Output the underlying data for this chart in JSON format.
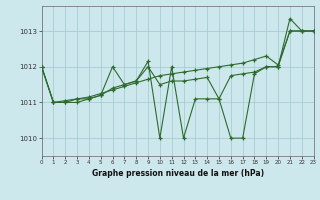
{
  "title": "Graphe pression niveau de la mer (hPa)",
  "bg_color": "#cde8ed",
  "grid_color": "#a0c8cc",
  "line_color": "#2d6b2d",
  "x_min": 0,
  "x_max": 23,
  "y_min": 1009.5,
  "y_max": 1013.7,
  "y_ticks": [
    1010,
    1011,
    1012,
    1013
  ],
  "x_ticks": [
    0,
    1,
    2,
    3,
    4,
    5,
    6,
    7,
    8,
    9,
    10,
    11,
    12,
    13,
    14,
    15,
    16,
    17,
    18,
    19,
    20,
    21,
    22,
    23
  ],
  "series_smooth": [
    [
      0,
      1012.0
    ],
    [
      1,
      1011.0
    ],
    [
      2,
      1011.05
    ],
    [
      3,
      1011.1
    ],
    [
      4,
      1011.15
    ],
    [
      5,
      1011.25
    ],
    [
      6,
      1011.35
    ],
    [
      7,
      1011.45
    ],
    [
      8,
      1011.55
    ],
    [
      9,
      1011.65
    ],
    [
      10,
      1011.75
    ],
    [
      11,
      1011.8
    ],
    [
      12,
      1011.85
    ],
    [
      13,
      1011.9
    ],
    [
      14,
      1011.95
    ],
    [
      15,
      1012.0
    ],
    [
      16,
      1012.05
    ],
    [
      17,
      1012.1
    ],
    [
      18,
      1012.2
    ],
    [
      19,
      1012.3
    ],
    [
      20,
      1012.05
    ],
    [
      21,
      1013.0
    ],
    [
      22,
      1013.0
    ],
    [
      23,
      1013.0
    ]
  ],
  "series_jagged1": [
    [
      0,
      1012.0
    ],
    [
      1,
      1011.0
    ],
    [
      2,
      1011.0
    ],
    [
      3,
      1011.0
    ],
    [
      4,
      1011.1
    ],
    [
      5,
      1011.2
    ],
    [
      6,
      1012.0
    ],
    [
      7,
      1011.5
    ],
    [
      8,
      1011.6
    ],
    [
      9,
      1012.15
    ],
    [
      10,
      1010.0
    ],
    [
      11,
      1012.0
    ],
    [
      12,
      1010.0
    ],
    [
      13,
      1011.1
    ],
    [
      14,
      1011.1
    ],
    [
      15,
      1011.1
    ],
    [
      16,
      1010.0
    ],
    [
      17,
      1010.0
    ],
    [
      18,
      1011.8
    ],
    [
      19,
      1012.0
    ],
    [
      20,
      1012.0
    ],
    [
      21,
      1013.35
    ],
    [
      22,
      1013.0
    ],
    [
      23,
      1013.0
    ]
  ],
  "series_jagged2": [
    [
      0,
      1012.0
    ],
    [
      1,
      1011.0
    ],
    [
      2,
      1011.0
    ],
    [
      3,
      1011.1
    ],
    [
      4,
      1011.1
    ],
    [
      5,
      1011.2
    ],
    [
      6,
      1011.4
    ],
    [
      7,
      1011.5
    ],
    [
      8,
      1011.6
    ],
    [
      9,
      1012.0
    ],
    [
      10,
      1011.5
    ],
    [
      11,
      1011.6
    ],
    [
      12,
      1011.6
    ],
    [
      13,
      1011.65
    ],
    [
      14,
      1011.7
    ],
    [
      15,
      1011.1
    ],
    [
      16,
      1011.75
    ],
    [
      17,
      1011.8
    ],
    [
      18,
      1011.85
    ],
    [
      19,
      1012.0
    ],
    [
      20,
      1012.0
    ],
    [
      21,
      1013.0
    ],
    [
      22,
      1013.0
    ],
    [
      23,
      1013.0
    ]
  ]
}
